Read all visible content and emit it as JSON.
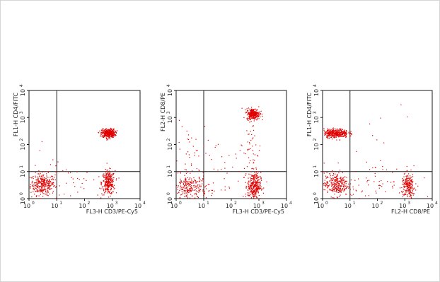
{
  "chart_data": [
    {
      "type": "scatter",
      "scale": "log",
      "xlim": [
        1,
        10000
      ],
      "ylim": [
        1,
        10000
      ],
      "x_tick_labels": [
        "10",
        "10",
        "10",
        "10",
        "10"
      ],
      "x_tick_exponents": [
        "0",
        "1",
        "2",
        "3",
        "4"
      ],
      "y_tick_labels": [
        "10",
        "10",
        "10",
        "10",
        "10"
      ],
      "y_tick_exponents": [
        "0",
        "1",
        "2",
        "3",
        "4"
      ],
      "xlabel_channel": "FL3-H",
      "xlabel": "CD3/PE-Cy5",
      "ylabel_channel": "FL1-H",
      "ylabel": "CD4/FITC",
      "quadrant_gate": {
        "x": 10,
        "y": 10
      },
      "point_color": "#e00000",
      "populations": [
        {
          "center": [
            3,
            3.5
          ],
          "spread": [
            0.22,
            0.2
          ],
          "count": 320
        },
        {
          "center": [
            700,
            4
          ],
          "spread": [
            0.12,
            0.22
          ],
          "count": 300
        },
        {
          "center": [
            700,
            270
          ],
          "spread": [
            0.12,
            0.08
          ],
          "count": 420
        },
        {
          "center": [
            60,
            4
          ],
          "spread": [
            0.6,
            0.3
          ],
          "count": 30
        },
        {
          "center": [
            8,
            40
          ],
          "spread": [
            0.5,
            0.5
          ],
          "count": 6
        }
      ]
    },
    {
      "type": "scatter",
      "scale": "log",
      "xlim": [
        1,
        10000
      ],
      "ylim": [
        1,
        10000
      ],
      "x_tick_labels": [
        "10",
        "10",
        "10",
        "10",
        "10"
      ],
      "x_tick_exponents": [
        "0",
        "1",
        "2",
        "3",
        "4"
      ],
      "y_tick_labels": [
        "10",
        "10",
        "10",
        "10",
        "10"
      ],
      "y_tick_exponents": [
        "0",
        "1",
        "2",
        "3",
        "4"
      ],
      "xlabel_channel": "FL3-H",
      "xlabel": "CD3/PE-Cy5",
      "ylabel_channel": "FL2-H",
      "ylabel": "CD8/PE",
      "quadrant_gate": {
        "x": 10,
        "y": 10
      },
      "point_color": "#e00000",
      "populations": [
        {
          "center": [
            3,
            2.5
          ],
          "spread": [
            0.3,
            0.25
          ],
          "count": 260
        },
        {
          "center": [
            3,
            40
          ],
          "spread": [
            0.35,
            0.7
          ],
          "count": 40
        },
        {
          "center": [
            650,
            3
          ],
          "spread": [
            0.12,
            0.25
          ],
          "count": 330
        },
        {
          "center": [
            600,
            1400
          ],
          "spread": [
            0.12,
            0.1
          ],
          "count": 300
        },
        {
          "center": [
            550,
            60
          ],
          "spread": [
            0.15,
            0.6
          ],
          "count": 50
        },
        {
          "center": [
            60,
            10
          ],
          "spread": [
            0.6,
            0.6
          ],
          "count": 40
        }
      ]
    },
    {
      "type": "scatter",
      "scale": "log",
      "xlim": [
        1,
        10000
      ],
      "ylim": [
        1,
        10000
      ],
      "x_tick_labels": [
        "10",
        "10",
        "10",
        "10",
        "10"
      ],
      "x_tick_exponents": [
        "0",
        "1",
        "2",
        "3",
        "4"
      ],
      "y_tick_labels": [
        "10",
        "10",
        "10",
        "10",
        "10"
      ],
      "y_tick_exponents": [
        "0",
        "1",
        "2",
        "3",
        "4"
      ],
      "xlabel_channel": "FL2-H",
      "xlabel": "CD8/PE",
      "ylabel_channel": "FL1-H",
      "ylabel": "CD4/FITC",
      "quadrant_gate": {
        "x": 10,
        "y": 10
      },
      "point_color": "#e00000",
      "populations": [
        {
          "center": [
            3,
            3.5
          ],
          "spread": [
            0.22,
            0.22
          ],
          "count": 300
        },
        {
          "center": [
            3,
            270
          ],
          "spread": [
            0.22,
            0.08
          ],
          "count": 380
        },
        {
          "center": [
            1300,
            3
          ],
          "spread": [
            0.12,
            0.22
          ],
          "count": 230
        },
        {
          "center": [
            80,
            4
          ],
          "spread": [
            0.6,
            0.3
          ],
          "count": 60
        },
        {
          "center": [
            200,
            200
          ],
          "spread": [
            0.7,
            0.5
          ],
          "count": 10
        }
      ]
    }
  ]
}
